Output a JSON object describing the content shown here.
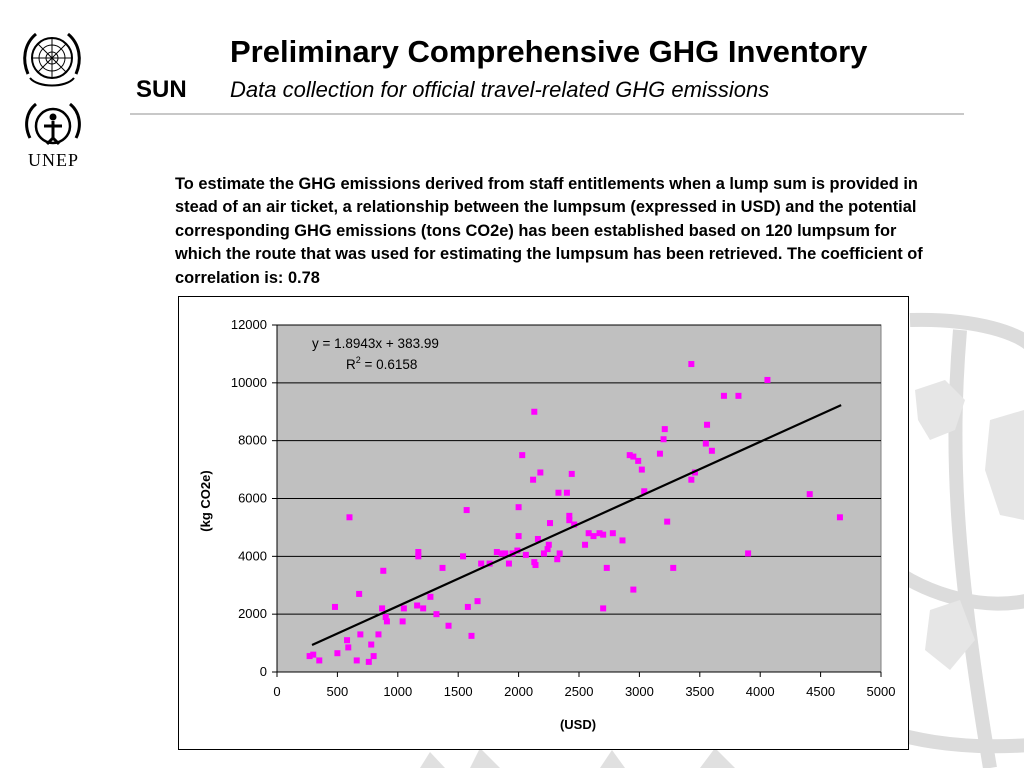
{
  "header": {
    "title": "Preliminary Comprehensive GHG Inventory",
    "subtitle": "Data collection for official travel-related GHG emissions",
    "sun_label": "SUN",
    "unep_label": "UNEP"
  },
  "description": "To estimate the GHG emissions derived from staff entitlements when a lump sum is provided in stead of an air ticket, a relationship between the lumpsum (expressed in USD) and the potential corresponding GHG emissions (tons CO2e) has been established based on 120 lumpsum for which the route that was used for estimating the lumpsum has been retrieved.  The coefficient of correlation is:  0.78",
  "colors": {
    "plot_background": "#c0c0c0",
    "marker": "#ff00ff",
    "trendline": "#000000",
    "gridline": "#000000"
  },
  "chart_data": {
    "type": "scatter",
    "xlabel": "(USD)",
    "ylabel": "(kg CO2e)",
    "xlim": [
      0,
      5000
    ],
    "ylim": [
      0,
      12000
    ],
    "xticks": [
      0,
      500,
      1000,
      1500,
      2000,
      2500,
      3000,
      3500,
      4000,
      4500,
      5000
    ],
    "yticks": [
      0,
      2000,
      4000,
      6000,
      8000,
      10000,
      12000
    ],
    "grid": "horizontal",
    "legend": "none",
    "annotation": {
      "equation": "y = 1.8943x + 383.99",
      "r2_label": "R",
      "r2_sup": "2",
      "r2_value": " = 0.6158"
    },
    "trendline": {
      "slope": 1.8943,
      "intercept": 383.99,
      "x_range": [
        290,
        4670
      ]
    },
    "points": [
      [
        270,
        550
      ],
      [
        300,
        600
      ],
      [
        350,
        400
      ],
      [
        480,
        2250
      ],
      [
        500,
        650
      ],
      [
        580,
        1100
      ],
      [
        590,
        850
      ],
      [
        600,
        5350
      ],
      [
        660,
        400
      ],
      [
        680,
        2700
      ],
      [
        690,
        1300
      ],
      [
        760,
        350
      ],
      [
        780,
        950
      ],
      [
        800,
        550
      ],
      [
        840,
        1300
      ],
      [
        870,
        2200
      ],
      [
        880,
        3500
      ],
      [
        900,
        1900
      ],
      [
        910,
        1750
      ],
      [
        1040,
        1750
      ],
      [
        1050,
        2200
      ],
      [
        1160,
        2300
      ],
      [
        1170,
        4000
      ],
      [
        1170,
        4150
      ],
      [
        1210,
        2200
      ],
      [
        1270,
        2600
      ],
      [
        1320,
        2000
      ],
      [
        1370,
        3600
      ],
      [
        1420,
        1600
      ],
      [
        1540,
        4000
      ],
      [
        1570,
        5600
      ],
      [
        1580,
        2250
      ],
      [
        1610,
        1250
      ],
      [
        1660,
        2450
      ],
      [
        1690,
        3750
      ],
      [
        1760,
        3750
      ],
      [
        1820,
        4150
      ],
      [
        1860,
        4100
      ],
      [
        1890,
        4100
      ],
      [
        1920,
        3750
      ],
      [
        1950,
        4100
      ],
      [
        1990,
        4200
      ],
      [
        2000,
        5700
      ],
      [
        2000,
        4700
      ],
      [
        2030,
        7500
      ],
      [
        2060,
        4050
      ],
      [
        2120,
        6650
      ],
      [
        2130,
        9000
      ],
      [
        2130,
        3800
      ],
      [
        2140,
        3700
      ],
      [
        2160,
        4600
      ],
      [
        2180,
        6900
      ],
      [
        2210,
        4100
      ],
      [
        2240,
        4250
      ],
      [
        2250,
        4400
      ],
      [
        2260,
        5150
      ],
      [
        2320,
        3900
      ],
      [
        2330,
        6200
      ],
      [
        2340,
        4100
      ],
      [
        2400,
        6200
      ],
      [
        2420,
        5250
      ],
      [
        2420,
        5400
      ],
      [
        2440,
        6850
      ],
      [
        2460,
        5100
      ],
      [
        2550,
        4400
      ],
      [
        2580,
        4800
      ],
      [
        2620,
        4700
      ],
      [
        2670,
        4800
      ],
      [
        2700,
        4750
      ],
      [
        2700,
        2200
      ],
      [
        2730,
        3600
      ],
      [
        2780,
        4800
      ],
      [
        2860,
        4550
      ],
      [
        2920,
        7500
      ],
      [
        2950,
        2850
      ],
      [
        2950,
        7450
      ],
      [
        2990,
        7300
      ],
      [
        3020,
        7000
      ],
      [
        3040,
        6250
      ],
      [
        3170,
        7550
      ],
      [
        3200,
        8050
      ],
      [
        3210,
        8400
      ],
      [
        3230,
        5200
      ],
      [
        3280,
        3600
      ],
      [
        3430,
        10650
      ],
      [
        3430,
        6650
      ],
      [
        3460,
        6900
      ],
      [
        3550,
        7900
      ],
      [
        3560,
        8550
      ],
      [
        3600,
        7650
      ],
      [
        3700,
        9550
      ],
      [
        3820,
        9550
      ],
      [
        3900,
        4100
      ],
      [
        4060,
        10100
      ],
      [
        4410,
        6150
      ],
      [
        4660,
        5350
      ]
    ]
  }
}
